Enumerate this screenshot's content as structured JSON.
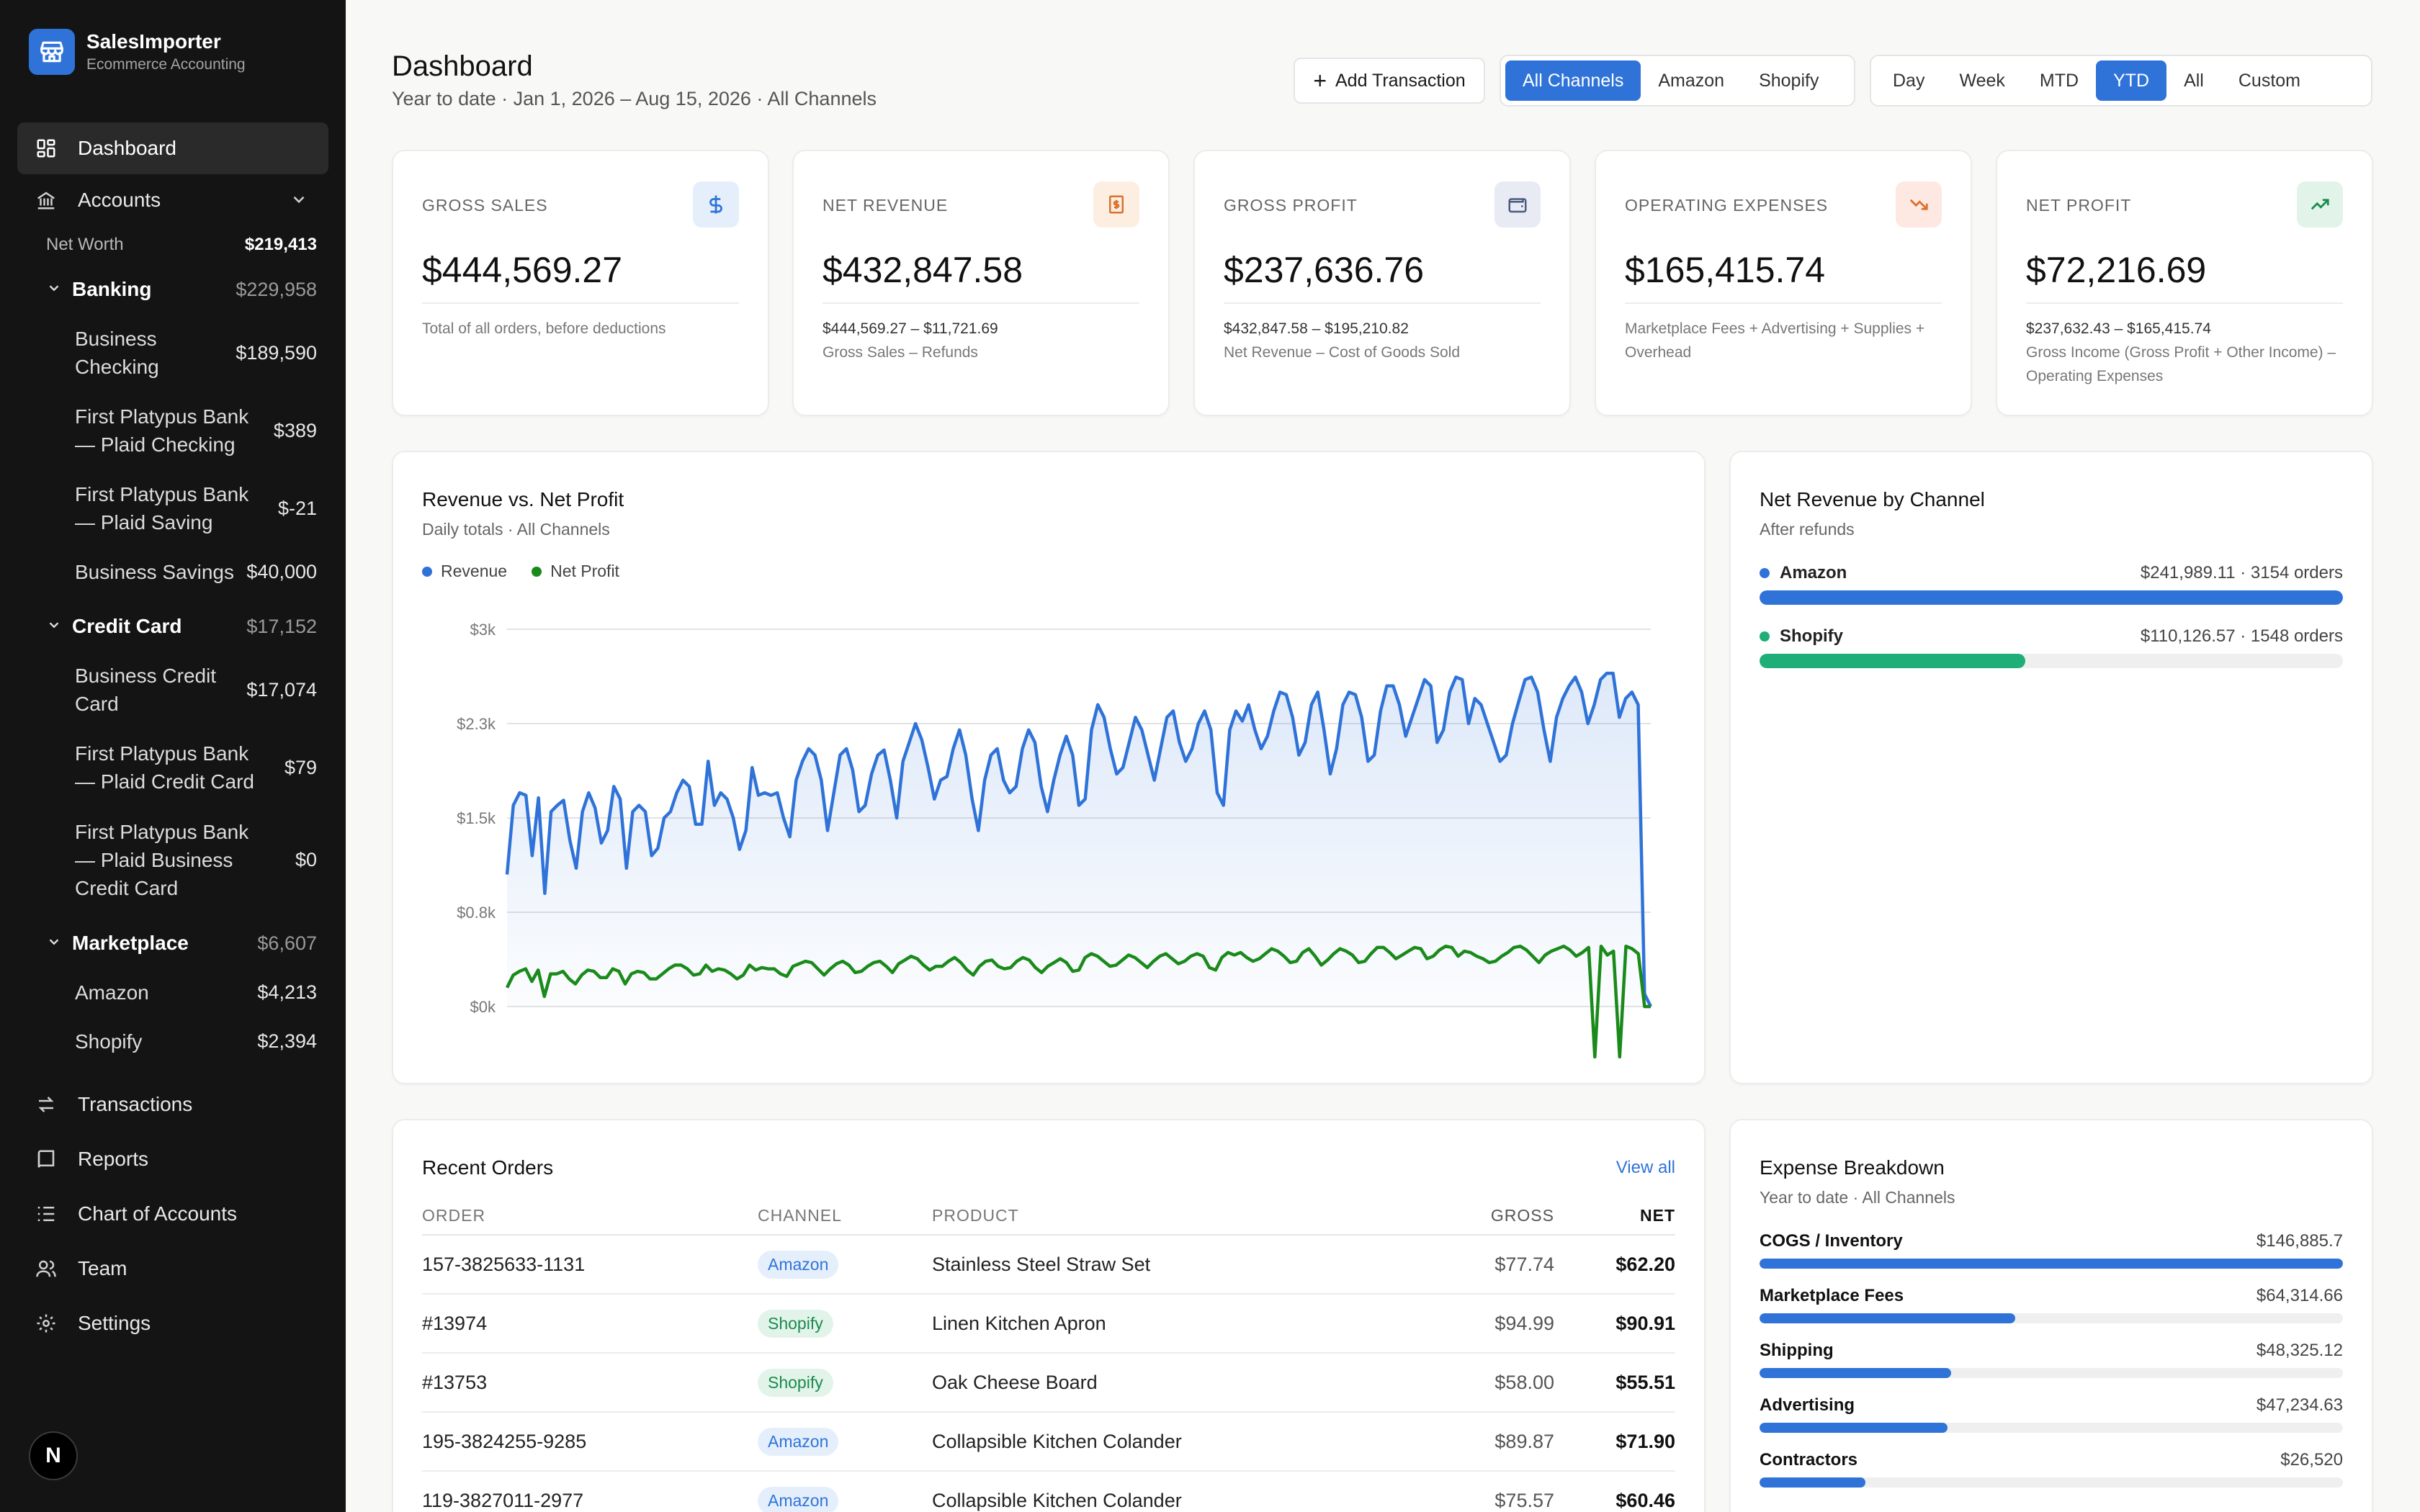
{
  "brand": {
    "name": "SalesImporter",
    "subtitle": "Ecommerce Accounting"
  },
  "sidebar": {
    "dashboard": "Dashboard",
    "accounts": "Accounts",
    "net_worth_label": "Net Worth",
    "net_worth_value": "$219,413",
    "groups": [
      {
        "label": "Banking",
        "amount": "$229,958",
        "accounts": [
          {
            "label": "Business Checking",
            "amount": "$189,590"
          },
          {
            "label": "First Platypus Bank — Plaid Checking",
            "amount": "$389"
          },
          {
            "label": "First Platypus Bank — Plaid Saving",
            "amount": "$-21"
          },
          {
            "label": "Business Savings",
            "amount": "$40,000"
          }
        ]
      },
      {
        "label": "Credit Card",
        "amount": "$17,152",
        "accounts": [
          {
            "label": "Business Credit Card",
            "amount": "$17,074"
          },
          {
            "label": "First Platypus Bank — Plaid Credit Card",
            "amount": "$79"
          },
          {
            "label": "First Platypus Bank — Plaid Business Credit Card",
            "amount": "$0"
          }
        ]
      },
      {
        "label": "Marketplace",
        "amount": "$6,607",
        "accounts": [
          {
            "label": "Amazon",
            "amount": "$4,213"
          },
          {
            "label": "Shopify",
            "amount": "$2,394"
          }
        ]
      }
    ],
    "nav": [
      {
        "label": "Transactions",
        "icon": "arrows-exchange-icon"
      },
      {
        "label": "Reports",
        "icon": "book-icon"
      },
      {
        "label": "Chart of Accounts",
        "icon": "list-tree-icon"
      },
      {
        "label": "Team",
        "icon": "users-icon"
      },
      {
        "label": "Settings",
        "icon": "gear-icon"
      }
    ],
    "avatar": "N"
  },
  "header": {
    "title": "Dashboard",
    "subtitle": "Year to date · Jan 1, 2026 – Aug 15, 2026 · All Channels",
    "add_transaction": "Add Transaction",
    "channels": [
      "All Channels",
      "Amazon",
      "Shopify"
    ],
    "channel_selected": "All Channels",
    "ranges": [
      "Day",
      "Week",
      "MTD",
      "YTD",
      "All",
      "Custom"
    ],
    "range_selected": "YTD"
  },
  "kpis": [
    {
      "label": "GROSS SALES",
      "value": "$444,569.27",
      "formula": "",
      "note": "Total of all orders, before deductions",
      "icon": "dollar-icon",
      "icon_color": "#2f73d9",
      "icon_bg": "#e5effc"
    },
    {
      "label": "NET REVENUE",
      "value": "$432,847.58",
      "formula": "$444,569.27 – $11,721.69",
      "note": "Gross Sales – Refunds",
      "icon": "receipt-icon",
      "icon_color": "#d9722f",
      "icon_bg": "#fdeee2"
    },
    {
      "label": "GROSS PROFIT",
      "value": "$237,636.76",
      "formula": "$432,847.58 – $195,210.82",
      "note": "Net Revenue – Cost of Goods Sold",
      "icon": "wallet-icon",
      "icon_color": "#4a5a80",
      "icon_bg": "#e8ebf3"
    },
    {
      "label": "OPERATING EXPENSES",
      "value": "$165,415.74",
      "formula": "",
      "note": "Marketplace Fees + Advertising + Supplies + Overhead",
      "icon": "trending-down-icon",
      "icon_color": "#d9722f",
      "icon_bg": "#fde8e2"
    },
    {
      "label": "NET PROFIT",
      "value": "$72,216.69",
      "formula": "$237,632.43 – $165,415.74",
      "note": "Gross Income (Gross Profit + Other Income) – Operating Expenses",
      "icon": "trending-up-icon",
      "icon_color": "#1a8a4e",
      "icon_bg": "#e2f4ea"
    }
  ],
  "revenue_chart": {
    "title": "Revenue vs. Net Profit",
    "subtitle": "Daily totals · All Channels"
  },
  "chart_data": {
    "type": "line",
    "xlabel": "",
    "ylabel": "",
    "y_ticks": [
      "$0k",
      "$0.8k",
      "$1.5k",
      "$2.3k",
      "$3k"
    ],
    "ylim": [
      0,
      3000
    ],
    "grid": true,
    "legend": "top-left",
    "series": [
      {
        "name": "Revenue",
        "color": "#2f73d9",
        "area": true,
        "values": [
          1050,
          1600,
          1700,
          1680,
          1200,
          1660,
          900,
          1550,
          1600,
          1640,
          1320,
          1100,
          1550,
          1700,
          1580,
          1300,
          1400,
          1750,
          1650,
          1100,
          1550,
          1600,
          1550,
          1200,
          1260,
          1500,
          1550,
          1700,
          1800,
          1750,
          1450,
          1450,
          1950,
          1600,
          1700,
          1650,
          1500,
          1250,
          1400,
          1900,
          1680,
          1700,
          1680,
          1700,
          1500,
          1350,
          1800,
          1950,
          2050,
          2000,
          1800,
          1400,
          1700,
          2000,
          2050,
          1880,
          1550,
          1600,
          1850,
          2000,
          2040,
          1800,
          1500,
          1950,
          2100,
          2250,
          2120,
          1900,
          1650,
          1800,
          1830,
          2050,
          2200,
          2000,
          1650,
          1400,
          1800,
          2000,
          2050,
          1800,
          1700,
          1750,
          2050,
          2200,
          2100,
          1750,
          1550,
          1800,
          2000,
          2150,
          2000,
          1600,
          1650,
          2200,
          2400,
          2300,
          2050,
          1850,
          1900,
          2100,
          2300,
          2200,
          2000,
          1800,
          2050,
          2300,
          2350,
          2100,
          1950,
          2050,
          2250,
          2350,
          2200,
          1700,
          1600,
          2200,
          2350,
          2270,
          2400,
          2200,
          2050,
          2150,
          2350,
          2500,
          2480,
          2300,
          2000,
          2100,
          2400,
          2500,
          2200,
          1850,
          2050,
          2400,
          2500,
          2480,
          2300,
          1950,
          2000,
          2350,
          2550,
          2550,
          2400,
          2150,
          2300,
          2450,
          2600,
          2550,
          2100,
          2200,
          2500,
          2620,
          2600,
          2250,
          2450,
          2400,
          2250,
          2100,
          1950,
          2000,
          2250,
          2430,
          2600,
          2620,
          2500,
          2200,
          1950,
          2300,
          2450,
          2550,
          2620,
          2500,
          2250,
          2400,
          2600,
          2650,
          2650,
          2300,
          2450,
          2500,
          2400,
          100,
          0
        ]
      },
      {
        "name": "Net Profit",
        "color": "#1a8a1a",
        "area": false,
        "values": [
          150,
          250,
          280,
          300,
          200,
          290,
          80,
          260,
          260,
          280,
          220,
          180,
          250,
          290,
          280,
          230,
          230,
          300,
          280,
          180,
          260,
          280,
          270,
          220,
          220,
          260,
          300,
          330,
          330,
          300,
          250,
          260,
          330,
          280,
          300,
          290,
          260,
          220,
          250,
          330,
          290,
          310,
          300,
          300,
          260,
          240,
          320,
          340,
          360,
          350,
          300,
          250,
          300,
          340,
          360,
          330,
          270,
          280,
          320,
          350,
          360,
          320,
          270,
          340,
          370,
          400,
          380,
          330,
          290,
          320,
          320,
          360,
          390,
          350,
          290,
          250,
          320,
          360,
          370,
          320,
          300,
          310,
          360,
          390,
          370,
          310,
          270,
          320,
          350,
          380,
          350,
          280,
          290,
          390,
          420,
          400,
          360,
          320,
          330,
          370,
          410,
          390,
          350,
          310,
          360,
          400,
          420,
          380,
          340,
          360,
          400,
          420,
          400,
          310,
          290,
          390,
          430,
          410,
          430,
          390,
          360,
          380,
          420,
          460,
          440,
          400,
          350,
          360,
          430,
          460,
          400,
          330,
          370,
          420,
          460,
          440,
          410,
          350,
          360,
          420,
          470,
          470,
          430,
          380,
          410,
          440,
          470,
          460,
          380,
          400,
          450,
          480,
          470,
          400,
          440,
          430,
          400,
          380,
          350,
          360,
          400,
          430,
          470,
          480,
          450,
          400,
          350,
          410,
          440,
          460,
          480,
          450,
          400,
          430,
          470,
          -400,
          480,
          410,
          440,
          -400,
          480,
          460,
          420,
          0,
          0
        ]
      }
    ]
  },
  "channel_card": {
    "title": "Net Revenue by Channel",
    "subtitle": "After refunds",
    "channels": [
      {
        "name": "Amazon",
        "stat": "$241,989.11 · 3154 orders",
        "share": 1.0,
        "color": "#2f73d9"
      },
      {
        "name": "Shopify",
        "stat": "$110,126.57 · 1548 orders",
        "share": 0.455,
        "color": "#1fae78"
      }
    ]
  },
  "orders": {
    "title": "Recent Orders",
    "view_all": "View all",
    "headers": {
      "order": "ORDER",
      "channel": "CHANNEL",
      "product": "PRODUCT",
      "gross": "GROSS",
      "net": "NET"
    },
    "rows": [
      {
        "order": "157-3825633-1131",
        "channel": "Amazon",
        "product": "Stainless Steel Straw Set",
        "gross": "$77.74",
        "net": "$62.20"
      },
      {
        "order": "#13974",
        "channel": "Shopify",
        "product": "Linen Kitchen Apron",
        "gross": "$94.99",
        "net": "$90.91"
      },
      {
        "order": "#13753",
        "channel": "Shopify",
        "product": "Oak Cheese Board",
        "gross": "$58.00",
        "net": "$55.51"
      },
      {
        "order": "195-3824255-9285",
        "channel": "Amazon",
        "product": "Collapsible Kitchen Colander",
        "gross": "$89.87",
        "net": "$71.90"
      },
      {
        "order": "119-3827011-2977",
        "channel": "Amazon",
        "product": "Collapsible Kitchen Colander",
        "gross": "$75.57",
        "net": "$60.46"
      }
    ]
  },
  "expenses": {
    "title": "Expense Breakdown",
    "subtitle": "Year to date · All Channels",
    "items": [
      {
        "name": "COGS / Inventory",
        "amount": "$146,885.7",
        "share": 1.0
      },
      {
        "name": "Marketplace Fees",
        "amount": "$64,314.66",
        "share": 0.438
      },
      {
        "name": "Shipping",
        "amount": "$48,325.12",
        "share": 0.329
      },
      {
        "name": "Advertising",
        "amount": "$47,234.63",
        "share": 0.322
      },
      {
        "name": "Contractors",
        "amount": "$26,520",
        "share": 0.181
      }
    ]
  }
}
